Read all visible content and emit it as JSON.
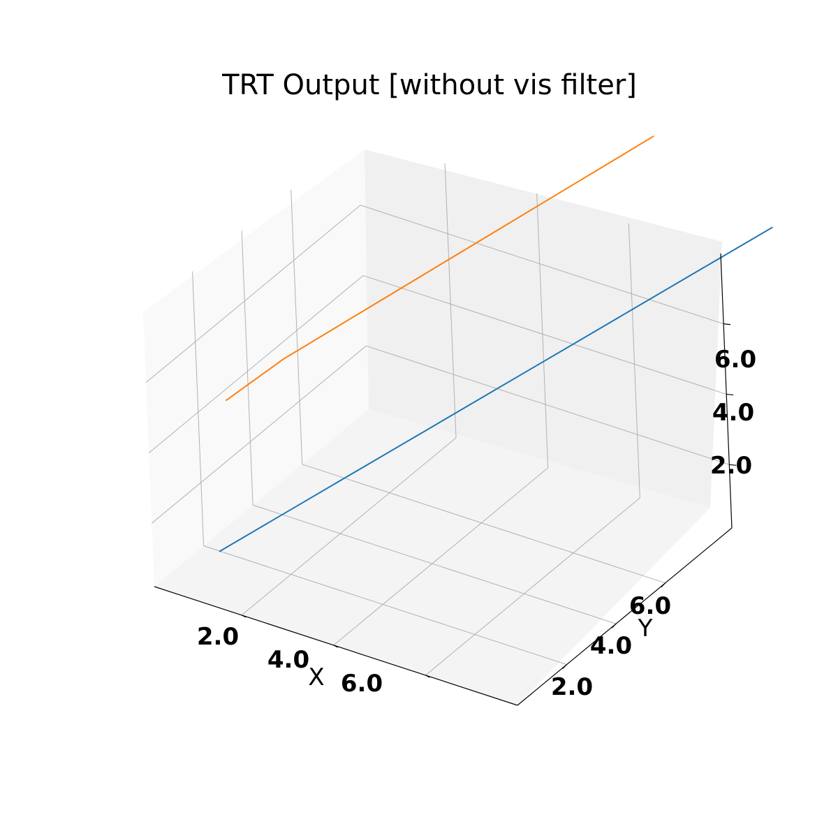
{
  "chart_data": {
    "type": "line",
    "projection": "3d",
    "title": "TRT Output [without vis filter]",
    "xlabel": "X",
    "ylabel": "Y",
    "zlabel": "",
    "xticks": [
      "2.0",
      "4.0",
      "6.0"
    ],
    "yticks": [
      "2.0",
      "4.0",
      "6.0"
    ],
    "zticks": [
      "2.0",
      "4.0",
      "6.0"
    ],
    "xlim": [
      0.1,
      8.0
    ],
    "ylim": [
      0.0,
      8.7
    ],
    "zlim": [
      0.2,
      8.0
    ],
    "grid": true,
    "legend": "none",
    "series": [
      {
        "color": "#1f77b4",
        "x": [
          1,
          2,
          3,
          4,
          5,
          6,
          7,
          8,
          9
        ],
        "y": [
          1,
          2,
          3,
          4,
          5,
          6,
          7,
          8,
          9
        ],
        "z": [
          1,
          2,
          3,
          4,
          5,
          6,
          7,
          8,
          9
        ]
      },
      {
        "color": "#ff7f0e",
        "x": [
          1.0,
          1.8,
          2.8,
          3.8,
          4.8,
          5.8,
          6.8
        ],
        "y": [
          1.5,
          2.4,
          3.6,
          4.8,
          6.0,
          7.2,
          8.4
        ],
        "z": [
          5.0,
          6.0,
          7.0,
          8.0,
          9.0,
          10.0,
          11.0
        ]
      }
    ]
  }
}
